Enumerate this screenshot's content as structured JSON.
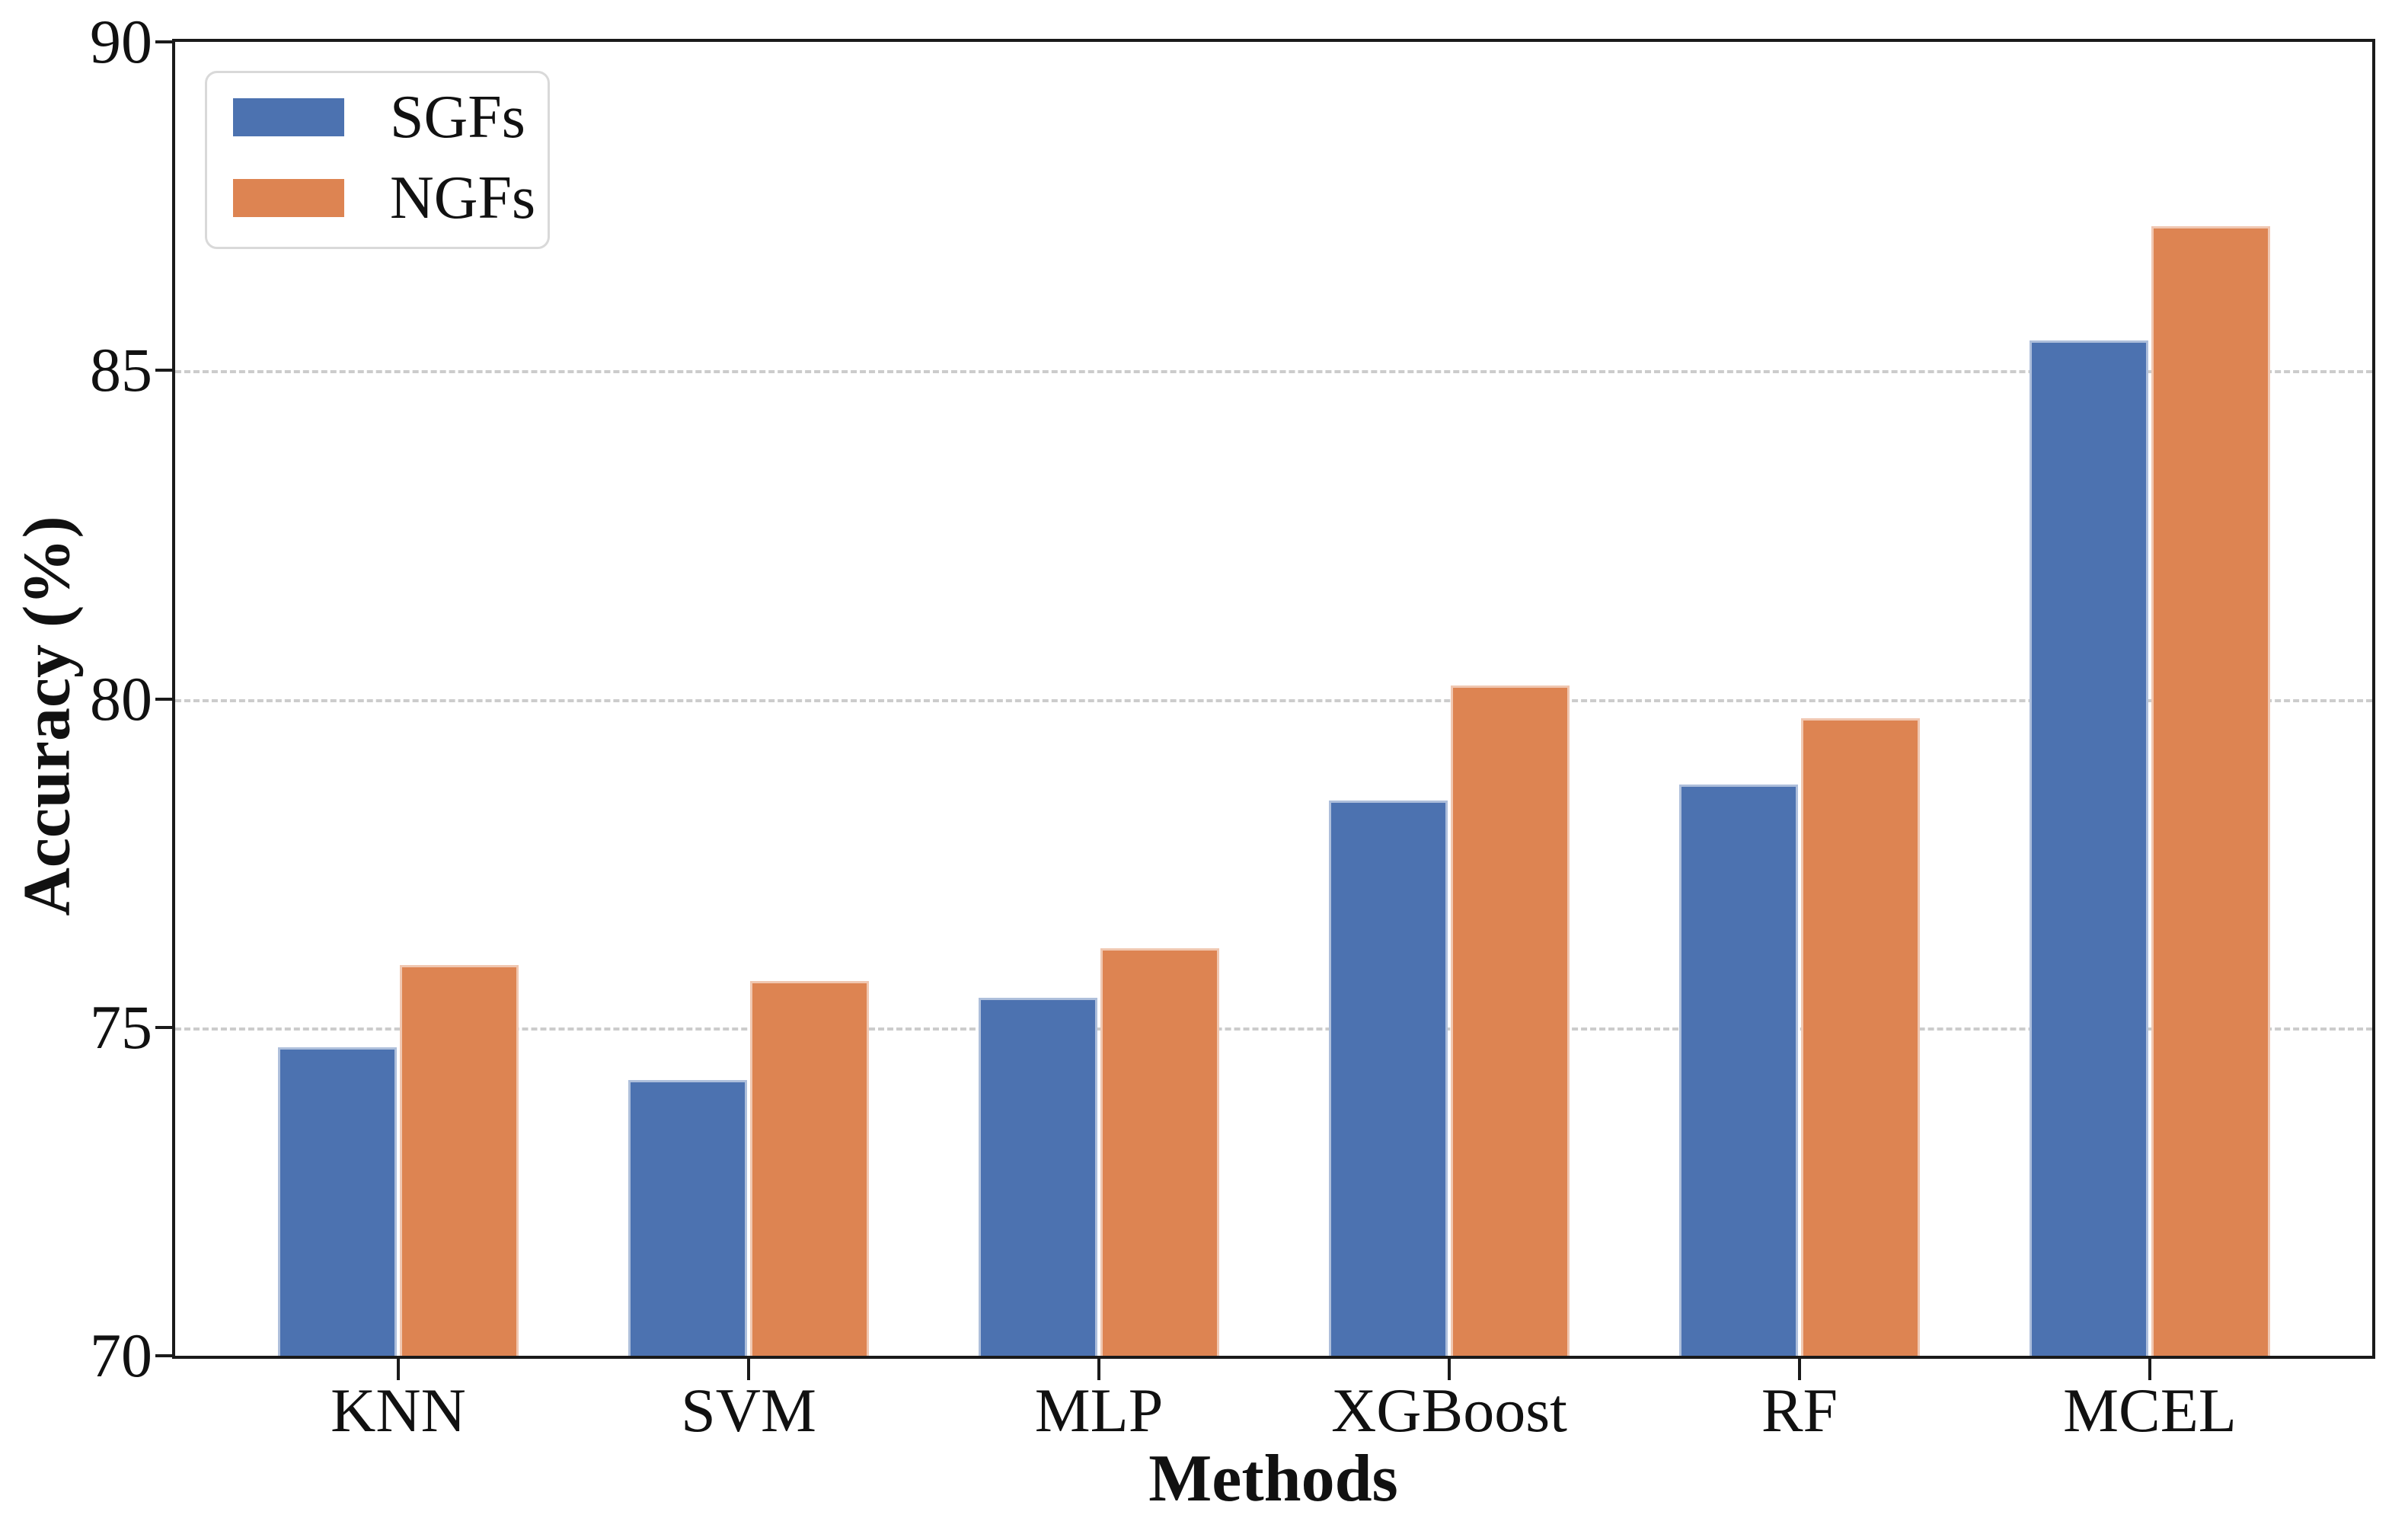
{
  "colors": {
    "sgf_bar": "#4C72B0",
    "ngf_bar": "#DD8452",
    "gridline": "#cccccc",
    "axis": "#1a1a1a",
    "text": "#111111",
    "legend_border": "#d9d9d9",
    "background": "#ffffff"
  },
  "legend": {
    "items": [
      {
        "label": "SGFs",
        "color": "#4C72B0"
      },
      {
        "label": "NGFs",
        "color": "#DD8452"
      }
    ]
  },
  "chart_data": {
    "type": "bar",
    "title": "",
    "categories": [
      "KNN",
      "SVM",
      "MLP",
      "XGBoost",
      "RF",
      "MCEL"
    ],
    "series": [
      {
        "name": "SGFs",
        "color": "#4C72B0",
        "values": [
          74.7,
          74.2,
          75.45,
          78.45,
          78.7,
          85.45
        ]
      },
      {
        "name": "NGFs",
        "color": "#DD8452",
        "values": [
          75.95,
          75.7,
          76.2,
          80.2,
          79.7,
          87.2
        ]
      }
    ],
    "xlabel": "Methods",
    "ylabel": "Accuracy (%)",
    "ylim": [
      70,
      90
    ],
    "yticks": [
      70,
      75,
      80,
      85,
      90
    ],
    "gridlines": [
      75,
      80,
      85
    ],
    "grid_style": "dashed horizontal, behind bars",
    "legend_position": "upper left",
    "frame": "full box"
  }
}
